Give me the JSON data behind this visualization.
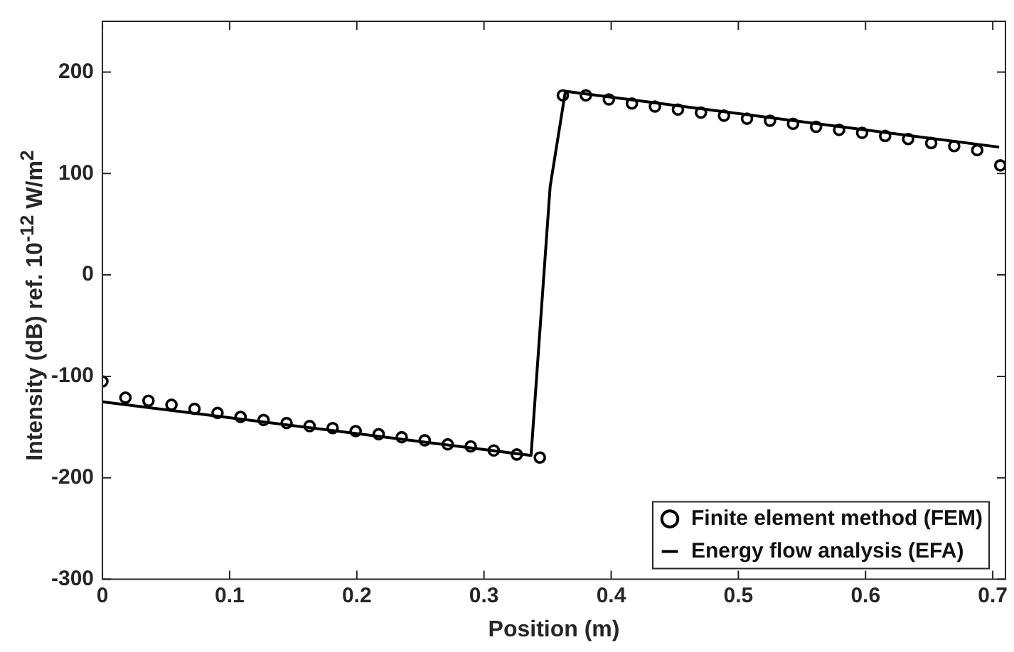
{
  "chart_data": {
    "type": "scatter",
    "xlabel": "Position (m)",
    "ylabel": "Intensity (dB) ref. 10$^{-12}$ W/m$^{2}$",
    "xlim": [
      0,
      0.71
    ],
    "xticks": [
      0,
      0.1,
      0.2,
      0.3,
      0.4,
      0.5,
      0.6,
      0.7
    ],
    "ylim": [
      -300,
      250
    ],
    "yticks": [
      -300,
      -200,
      -100,
      0,
      100,
      200
    ],
    "grid": false,
    "legend": "bottom right",
    "series": [
      {
        "name": "Finite element method (FEM)",
        "type": "scatter",
        "marker": "circle",
        "color": "#000000",
        "x": [
          0,
          0.0181,
          0.0362,
          0.0543,
          0.0724,
          0.0905,
          0.1086,
          0.1267,
          0.1448,
          0.1629,
          0.181,
          0.1991,
          0.2172,
          0.2353,
          0.2534,
          0.2715,
          0.2896,
          0.3077,
          0.3258,
          0.3439,
          0.362,
          0.3801,
          0.3982,
          0.4163,
          0.4344,
          0.4525,
          0.4706,
          0.4887,
          0.5068,
          0.5249,
          0.543,
          0.5611,
          0.5792,
          0.5973,
          0.6154,
          0.6335,
          0.6516,
          0.6697,
          0.6878,
          0.7059
        ],
        "values": [
          -105,
          -121,
          -124,
          -128,
          -132,
          -136,
          -140,
          -143,
          -146,
          -149,
          -151,
          -154,
          -157,
          -160,
          -163,
          -167,
          -169,
          -173,
          -177,
          -180,
          177,
          177,
          173,
          169,
          166,
          163,
          160,
          157,
          154,
          152,
          149,
          146,
          143,
          140,
          137,
          134,
          130,
          127,
          123,
          108
        ]
      },
      {
        "name": "Energy flow analysis (EFA)",
        "type": "line",
        "color": "#000000",
        "line_style": "solid",
        "x": [
          0,
          0.337,
          0.352,
          0.364,
          0.705
        ],
        "values": [
          -125,
          -178,
          87,
          181,
          126
        ]
      }
    ]
  }
}
